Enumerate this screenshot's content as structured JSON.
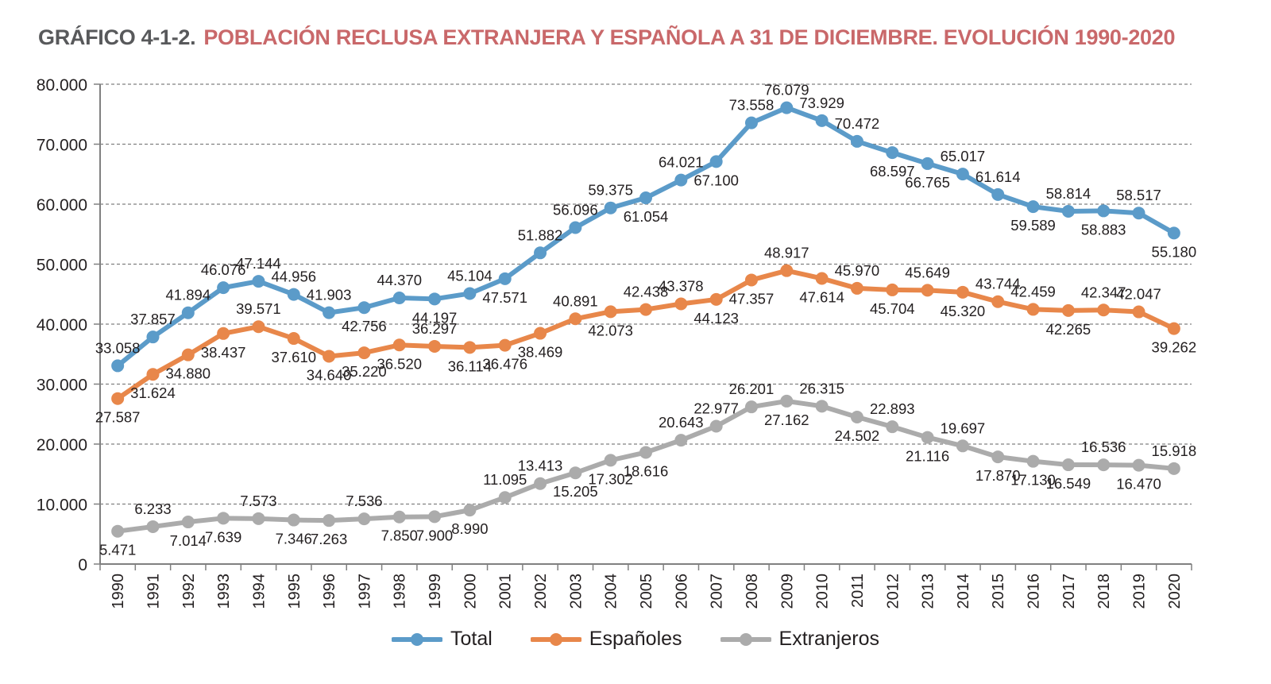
{
  "title": {
    "prefix": "GRÁFICO 4-1-2.",
    "main": "POBLACIÓN RECLUSA EXTRANJERA Y ESPAÑOLA A 31 DE DICIEMBRE. EVOLUCIÓN 1990-2020"
  },
  "colors": {
    "title_prefix": "#58595b",
    "title_main": "#c9686a",
    "total": "#5b9bc9",
    "espanoles": "#e8874a",
    "extranjeros": "#ababab",
    "grid": "#808080",
    "axis": "#808080",
    "text": "#231f20"
  },
  "chart_data": {
    "type": "line",
    "title": "POBLACIÓN RECLUSA EXTRANJERA Y ESPAÑOLA A 31 DE DICIEMBRE. EVOLUCIÓN 1990-2020",
    "xlabel": "",
    "ylabel": "",
    "ylim": [
      0,
      80000
    ],
    "y_ticks": [
      0,
      10000,
      20000,
      30000,
      40000,
      50000,
      60000,
      70000,
      80000
    ],
    "y_tick_labels": [
      "0",
      "10.000",
      "20.000",
      "30.000",
      "40.000",
      "50.000",
      "60.000",
      "70.000",
      "80.000"
    ],
    "grid": "horizontal-dashed",
    "legend_position": "bottom",
    "categories": [
      "1990",
      "1991",
      "1992",
      "1993",
      "1994",
      "1995",
      "1996",
      "1997",
      "1998",
      "1999",
      "2000",
      "2001",
      "2002",
      "2003",
      "2004",
      "2005",
      "2006",
      "2007",
      "2008",
      "2009",
      "2010",
      "2011",
      "2012",
      "2013",
      "2014",
      "2015",
      "2016",
      "2017",
      "2018",
      "2019",
      "2020"
    ],
    "series": [
      {
        "name": "Total",
        "color_key": "total",
        "values": [
          33058,
          37857,
          41894,
          46076,
          47144,
          44956,
          41903,
          42756,
          44370,
          44197,
          45104,
          47571,
          51882,
          56096,
          59375,
          61054,
          64021,
          67100,
          73558,
          76079,
          73929,
          70472,
          68597,
          66765,
          65017,
          61614,
          59589,
          58814,
          58883,
          58517,
          55180
        ],
        "labels": [
          "33.058",
          "37.857",
          "41.894",
          "46.076",
          "47.144",
          "44.956",
          "41.903",
          "42.756",
          "44.370",
          "44.197",
          "45.104",
          "47.571",
          "51.882",
          "56.096",
          "59.375",
          "61.054",
          "64.021",
          "67.100",
          "73.558",
          "76.079",
          "73.929",
          "70.472",
          "68.597",
          "66.765",
          "65.017",
          "61.614",
          "59.589",
          "58.814",
          "58.883",
          "58.517",
          "55.180"
        ],
        "label_pos": [
          "a",
          "a",
          "a",
          "a",
          "a",
          "a",
          "a",
          "b",
          "a",
          "b",
          "a",
          "b",
          "a",
          "a",
          "a",
          "b",
          "a",
          "b",
          "a",
          "a",
          "a",
          "a",
          "b",
          "b",
          "a",
          "a",
          "b",
          "a",
          "b",
          "a",
          "b"
        ]
      },
      {
        "name": "Españoles",
        "color_key": "espanoles",
        "values": [
          27587,
          31624,
          34880,
          38437,
          39571,
          37610,
          34640,
          35220,
          36520,
          36297,
          36114,
          36476,
          38469,
          40891,
          42073,
          42438,
          43378,
          44123,
          47357,
          48917,
          47614,
          45970,
          45704,
          45649,
          45320,
          43744,
          42459,
          42265,
          42347,
          42047,
          39262
        ],
        "labels": [
          "27.587",
          "31.624",
          "34.880",
          "38.437",
          "39.571",
          "37.610",
          "34.640",
          "35.220",
          "36.520",
          "36.297",
          "36.114",
          "36.476",
          "38.469",
          "40.891",
          "42.073",
          "42.438",
          "43.378",
          "44.123",
          "47.357",
          "48.917",
          "47.614",
          "45.970",
          "45.704",
          "45.649",
          "45.320",
          "43.744",
          "42.459",
          "42.265",
          "42.347",
          "42.047",
          "39.262"
        ],
        "label_pos": [
          "b",
          "b",
          "b",
          "b",
          "a",
          "b",
          "b",
          "b",
          "b",
          "a",
          "b",
          "b",
          "b",
          "a",
          "b",
          "a",
          "a",
          "b",
          "b",
          "a",
          "b",
          "a",
          "b",
          "a",
          "b",
          "a",
          "a",
          "b",
          "a",
          "a",
          "b"
        ]
      },
      {
        "name": "Extranjeros",
        "color_key": "extranjeros",
        "values": [
          5471,
          6233,
          7014,
          7639,
          7573,
          7346,
          7263,
          7536,
          7850,
          7900,
          8990,
          11095,
          13413,
          15205,
          17302,
          18616,
          20643,
          22977,
          26201,
          27162,
          26315,
          24502,
          22893,
          21116,
          19697,
          17870,
          17130,
          16549,
          16536,
          16470,
          15918
        ],
        "labels": [
          "5.471",
          "6.233",
          "7.014",
          "7.639",
          "7.573",
          "7.346",
          "7.263",
          "7.536",
          "7.850",
          "7.900",
          "8.990",
          "11.095",
          "13.413",
          "15.205",
          "17.302",
          "18.616",
          "20.643",
          "22.977",
          "26.201",
          "27.162",
          "26.315",
          "24.502",
          "22.893",
          "21.116",
          "19.697",
          "17.870",
          "17.130",
          "16.549",
          "16.536",
          "16.470",
          "15.918"
        ],
        "label_pos": [
          "b",
          "a",
          "b",
          "b",
          "a",
          "b",
          "b",
          "a",
          "b",
          "b",
          "b",
          "a",
          "a",
          "b",
          "b",
          "b",
          "a",
          "a",
          "a",
          "b",
          "a",
          "b",
          "a",
          "b",
          "a",
          "b",
          "b",
          "b",
          "a",
          "b",
          "a"
        ]
      }
    ]
  }
}
